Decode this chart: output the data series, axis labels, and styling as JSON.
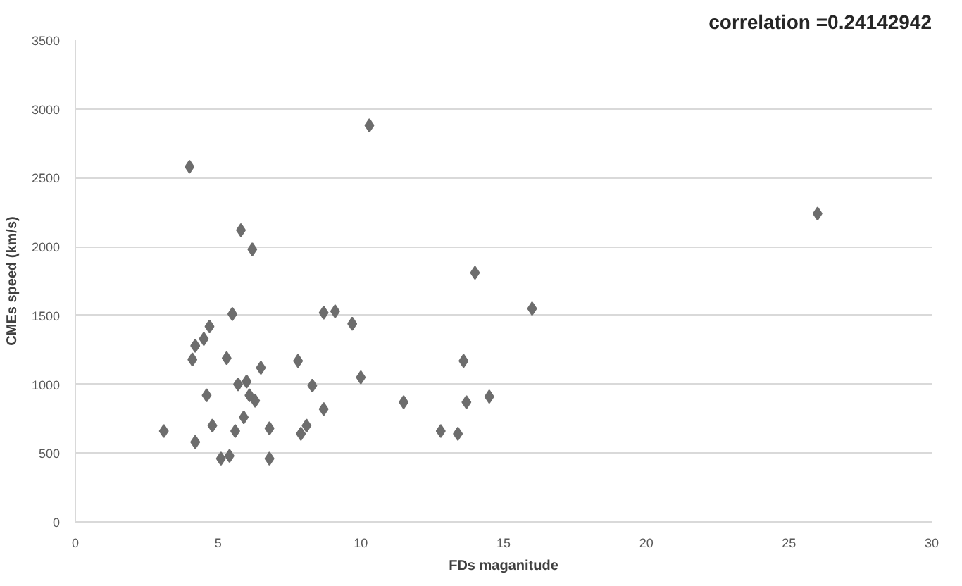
{
  "chart_data": {
    "type": "scatter",
    "xlabel": "FDs maganitude",
    "ylabel": "CMEs speed (km/s)",
    "annotations": [
      "correlation =0.24142942"
    ],
    "x": [
      3.1,
      4.0,
      4.1,
      4.2,
      4.2,
      4.5,
      4.6,
      4.7,
      4.8,
      5.1,
      5.3,
      5.4,
      5.5,
      5.6,
      5.7,
      5.8,
      5.9,
      6.0,
      6.1,
      6.2,
      6.3,
      6.5,
      6.8,
      6.8,
      7.8,
      7.9,
      8.1,
      8.3,
      8.7,
      8.7,
      9.1,
      9.7,
      10.0,
      10.3,
      11.5,
      12.8,
      13.4,
      13.6,
      13.7,
      14.0,
      14.5,
      16.0,
      26.0
    ],
    "series": [
      {
        "color": "#6d6d6d",
        "values": [
          660,
          2580,
          1180,
          1280,
          580,
          1330,
          920,
          1420,
          700,
          460,
          1190,
          480,
          1510,
          660,
          1000,
          2120,
          760,
          1020,
          920,
          1980,
          880,
          1120,
          460,
          680,
          1170,
          640,
          700,
          990,
          1520,
          820,
          1530,
          1440,
          1050,
          2880,
          870,
          660,
          640,
          1170,
          870,
          1810,
          910,
          1550,
          2240
        ]
      }
    ],
    "xlim": [
      0,
      30
    ],
    "xticks": [
      0,
      5,
      10,
      15,
      20,
      25,
      30
    ],
    "ylim": [
      0,
      3500
    ],
    "yticks": [
      0,
      500,
      1000,
      1500,
      2000,
      2500,
      3000,
      3500
    ],
    "grid": "y",
    "marker": "diamond"
  }
}
